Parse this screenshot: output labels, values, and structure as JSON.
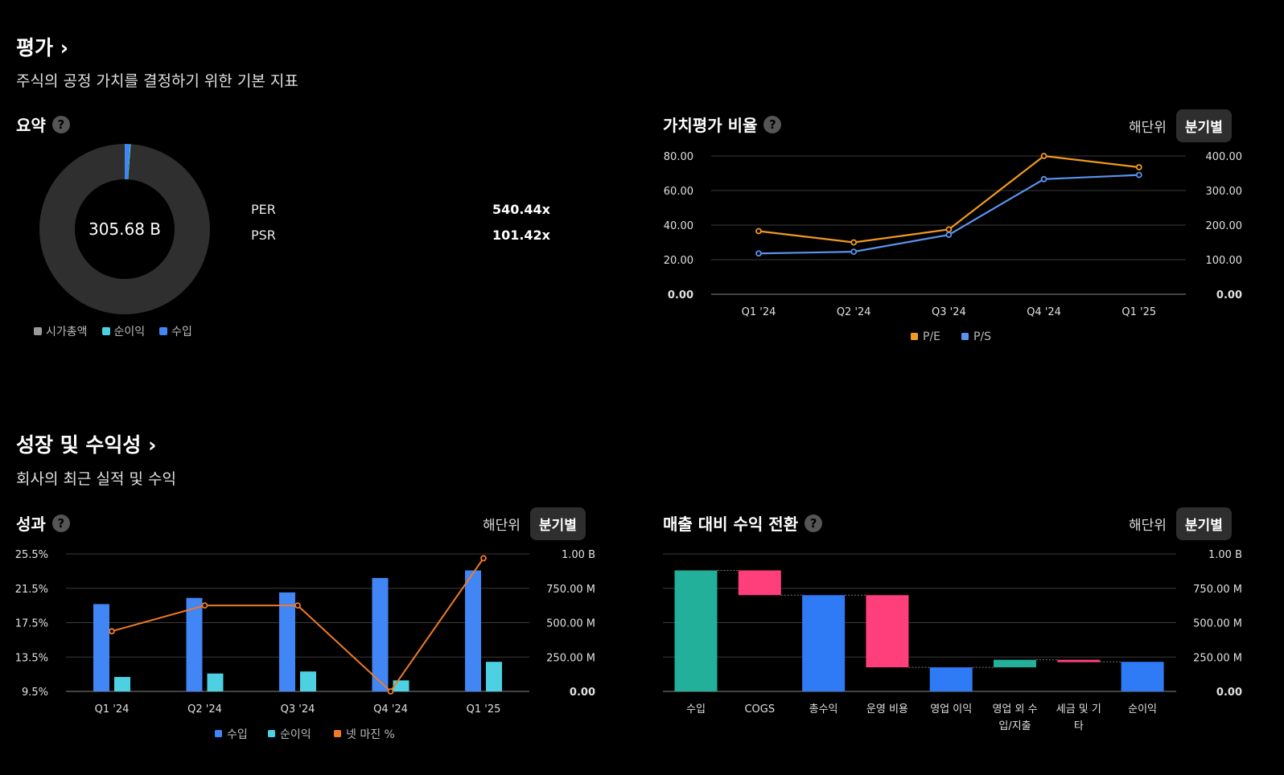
{
  "valuation": {
    "title": "평가",
    "subtitle": "주식의 공정 가치를 결정하기 위한 기본 지표"
  },
  "summary": {
    "title": "요약",
    "center_label": "305.68 B",
    "metrics": [
      {
        "label": "PER",
        "value": "540.44x"
      },
      {
        "label": "PSR",
        "value": "101.42x"
      }
    ]
  },
  "ratios": {
    "title": "가치평가 비율",
    "toggle": {
      "annual": "해단위",
      "quarterly": "분기별"
    }
  },
  "growth": {
    "title": "성장 및 수익성",
    "subtitle": "회사의 최근 실적 및 수익"
  },
  "performance": {
    "title": "성과",
    "toggle": {
      "annual": "해단위",
      "quarterly": "분기별"
    }
  },
  "conversion": {
    "title": "매출 대비 수익 전환",
    "toggle": {
      "annual": "해단위",
      "quarterly": "분기별"
    }
  },
  "colors": {
    "market_cap": "#2f2f2f",
    "net_income": "#4dd0e1",
    "revenue": "#4285f4",
    "pe": "#f29a1e",
    "ps": "#5b93f0",
    "net_margin": "#f07b26",
    "wf_pos": "#22b09a",
    "wf_neg": "#fe3f7c",
    "wf_total": "#2f7bf5"
  },
  "chart_data": [
    {
      "id": "summary-donut",
      "type": "pie",
      "title": "요약",
      "center_label": "305.68 B",
      "slices": [
        {
          "name": "시가총액",
          "value": 305.68
        },
        {
          "name": "순이익",
          "value": 0.57
        },
        {
          "name": "수입",
          "value": 3.01
        }
      ],
      "legend": [
        "시가총액",
        "순이익",
        "수입"
      ]
    },
    {
      "id": "valuation-ratios",
      "type": "line",
      "title": "가치평가 비율",
      "categories": [
        "Q1 '24",
        "Q2 '24",
        "Q3 '24",
        "Q4 '24",
        "Q1 '25"
      ],
      "series": [
        {
          "name": "P/E",
          "axis": "left",
          "values": [
            36.5,
            30.0,
            37.5,
            80.0,
            73.5
          ]
        },
        {
          "name": "P/S",
          "axis": "right",
          "values": [
            118,
            123,
            172,
            333,
            345
          ]
        }
      ],
      "ylim_left": [
        0,
        80
      ],
      "ylim_right": [
        0,
        400
      ],
      "yticks_left": [
        "0.00",
        "20.00",
        "40.00",
        "60.00",
        "80.00"
      ],
      "yticks_right": [
        "0.00",
        "100.00",
        "200.00",
        "300.00",
        "400.00"
      ],
      "legend": [
        "P/E",
        "P/S"
      ]
    },
    {
      "id": "performance",
      "type": "bar",
      "title": "성과",
      "categories": [
        "Q1 '24",
        "Q2 '24",
        "Q3 '24",
        "Q4 '24",
        "Q1 '25"
      ],
      "series": [
        {
          "name": "수입",
          "kind": "bar",
          "axis": "right",
          "values": [
            635,
            680,
            720,
            825,
            880
          ]
        },
        {
          "name": "순이익",
          "kind": "bar",
          "axis": "right",
          "values": [
            105,
            130,
            145,
            80,
            215
          ]
        },
        {
          "name": "넷 마진 %",
          "kind": "line",
          "axis": "left",
          "values": [
            16.5,
            19.5,
            19.5,
            9.5,
            25.0
          ]
        }
      ],
      "ylim_left": [
        9.5,
        25.5
      ],
      "ylim_right": [
        0,
        1000
      ],
      "yticks_left": [
        "9.5%",
        "13.5%",
        "17.5%",
        "21.5%",
        "25.5%"
      ],
      "yticks_right": [
        "0.00",
        "250.00 M",
        "500.00 M",
        "750.00 M",
        "1.00 B"
      ],
      "legend": [
        "수입",
        "순이익",
        "넷 마진 %"
      ]
    },
    {
      "id": "revenue-conversion",
      "type": "bar",
      "subtype": "waterfall",
      "title": "매출 대비 수익 전환",
      "categories": [
        "수입",
        "COGS",
        "총수익",
        "운영 비용",
        "영업 이익",
        "영업 외 수입/지출",
        "세금 및 기타",
        "순이익"
      ],
      "labels": [
        [
          "수입"
        ],
        [
          "COGS"
        ],
        [
          "총수익"
        ],
        [
          "운영 비용"
        ],
        [
          "영업 이익"
        ],
        [
          "영업 외 수",
          "입/지출"
        ],
        [
          "세금 및 기",
          "타"
        ],
        [
          "순이익"
        ]
      ],
      "steps": [
        {
          "kind": "pos",
          "value": 880
        },
        {
          "kind": "neg",
          "value": 180
        },
        {
          "kind": "total",
          "value": 700
        },
        {
          "kind": "neg",
          "value": 525
        },
        {
          "kind": "total",
          "value": 175
        },
        {
          "kind": "pos",
          "value": 55
        },
        {
          "kind": "neg",
          "value": 15
        },
        {
          "kind": "total",
          "value": 215
        }
      ],
      "ylim": [
        0,
        1000
      ],
      "yticks": [
        "0.00",
        "250.00 M",
        "500.00 M",
        "750.00 M",
        "1.00 B"
      ]
    }
  ]
}
